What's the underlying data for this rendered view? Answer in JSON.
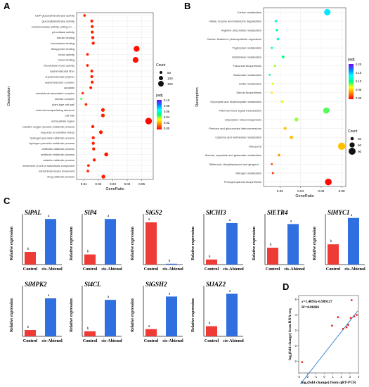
{
  "panels": {
    "A": {
      "letter": "A"
    },
    "B": {
      "letter": "B"
    },
    "C": {
      "letter": "C"
    },
    "D": {
      "letter": "D"
    }
  },
  "chart_data": [
    {
      "id": "A",
      "type": "scatter",
      "xlabel": "GeneRatio",
      "ylabel": "Description",
      "xlim": [
        0.005,
        0.058
      ],
      "xticks": [
        0.01,
        0.02,
        0.03,
        0.04,
        0.05
      ],
      "xtick_labels": [
        "0.01",
        "0.02",
        "0.03",
        "0.04",
        "0.05"
      ],
      "grid": true,
      "legend": {
        "count_title": "Count",
        "count_levels": [
          50,
          100,
          150
        ],
        "padj_title": "padj",
        "padj_levels": [
          "0.10",
          "0.08",
          "0.06",
          "0.04",
          "0.02",
          "0.00"
        ]
      },
      "points": [
        {
          "label": "UDP-glucosyltransferase activity",
          "x": 0.0105,
          "count": 40,
          "padj": 0.005
        },
        {
          "label": "glucosyltransferase activity",
          "x": 0.0155,
          "count": 55,
          "padj": 0.004
        },
        {
          "label": "oxidoreductase activity, acting on ...",
          "x": 0.0158,
          "count": 55,
          "padj": 0.004
        },
        {
          "label": "peroxidase activity",
          "x": 0.0158,
          "count": 55,
          "padj": 0.004
        },
        {
          "label": "tubulin binding",
          "x": 0.0162,
          "count": 60,
          "padj": 0.004
        },
        {
          "label": "microtubule binding",
          "x": 0.0165,
          "count": 60,
          "padj": 0.004
        },
        {
          "label": "tetrapyrrole binding",
          "x": 0.0465,
          "count": 160,
          "padj": 0.002
        },
        {
          "label": "motor activity",
          "x": 0.0125,
          "count": 45,
          "padj": 0.005
        },
        {
          "label": "heme binding",
          "x": 0.0458,
          "count": 155,
          "padj": 0.002
        },
        {
          "label": "microtubule motor activity",
          "x": 0.0125,
          "count": 45,
          "padj": 0.005
        },
        {
          "label": "supramolecular fiber",
          "x": 0.0155,
          "count": 55,
          "padj": 0.004
        },
        {
          "label": "supramolecular polymer",
          "x": 0.0155,
          "count": 55,
          "padj": 0.004
        },
        {
          "label": "supramolecular complex",
          "x": 0.0158,
          "count": 55,
          "padj": 0.004
        },
        {
          "label": "apoplast",
          "x": 0.0148,
          "count": 50,
          "padj": 0.004
        },
        {
          "label": "microtubule associated complex",
          "x": 0.0092,
          "count": 35,
          "padj": 0.005
        },
        {
          "label": "kinesin complex",
          "x": 0.0082,
          "count": 25,
          "padj": 0.045
        },
        {
          "label": "plant-type cell wall",
          "x": 0.0115,
          "count": 45,
          "padj": 0.005
        },
        {
          "label": "external encapsulating structure",
          "x": 0.0232,
          "count": 80,
          "padj": 0.004
        },
        {
          "label": "cell wall",
          "x": 0.0232,
          "count": 80,
          "padj": 0.004
        },
        {
          "label": "extracellular region",
          "x": 0.0548,
          "count": 185,
          "padj": 0.001
        },
        {
          "label": "reactive oxygen species metabolic process",
          "x": 0.0162,
          "count": 60,
          "padj": 0.004
        },
        {
          "label": "response to oxidative stress",
          "x": 0.0218,
          "count": 80,
          "padj": 0.003
        },
        {
          "label": "hydrogen peroxide catabolic process",
          "x": 0.0165,
          "count": 60,
          "padj": 0.004
        },
        {
          "label": "hydrogen peroxide metabolic process",
          "x": 0.0165,
          "count": 60,
          "padj": 0.004
        },
        {
          "label": "antibiotic catabolic process",
          "x": 0.0168,
          "count": 60,
          "padj": 0.004
        },
        {
          "label": "antibiotic metabolic process",
          "x": 0.0255,
          "count": 90,
          "padj": 0.003
        },
        {
          "label": "cofactor catabolic process",
          "x": 0.0172,
          "count": 60,
          "padj": 0.004
        },
        {
          "label": "movement of cell or subcellular component",
          "x": 0.0132,
          "count": 45,
          "padj": 0.005
        },
        {
          "label": "microtubule-based movement",
          "x": 0.0128,
          "count": 45,
          "padj": 0.005
        },
        {
          "label": "drug catabolic process",
          "x": 0.0235,
          "count": 85,
          "padj": 0.004
        }
      ]
    },
    {
      "id": "B",
      "type": "scatter",
      "xlabel": "GeneRatio",
      "ylabel": "Description",
      "xlim": [
        0.004,
        0.084
      ],
      "xticks": [
        0.02,
        0.04,
        0.06,
        0.08
      ],
      "xtick_labels": [
        "0.02",
        "0.04",
        "0.06",
        "0.08"
      ],
      "grid": true,
      "legend": {
        "padj_title": "padj",
        "padj_levels": [
          "0.20",
          "0.15",
          "0.10",
          "0.05",
          "0.00"
        ],
        "count_title": "Count",
        "count_levels": [
          30,
          60,
          90
        ]
      },
      "points": [
        {
          "label": "Carbon metabolism",
          "x": 0.066,
          "count": 80,
          "padj": 0.14
        },
        {
          "label": "Valine, leucine and isoleucine degradation",
          "x": 0.016,
          "count": 18,
          "padj": 0.12
        },
        {
          "label": "Arginine and proline metabolism",
          "x": 0.017,
          "count": 18,
          "padj": 0.11
        },
        {
          "label": "Carbon fixation in photosynthetic organisms",
          "x": 0.018,
          "count": 20,
          "padj": 0.12
        },
        {
          "label": "Tryptophan metabolism",
          "x": 0.012,
          "count": 12,
          "padj": 0.12
        },
        {
          "label": "Glutathione metabolism",
          "x": 0.023,
          "count": 22,
          "padj": 0.1
        },
        {
          "label": "Flavonoid biosynthesis",
          "x": 0.015,
          "count": 14,
          "padj": 0.08
        },
        {
          "label": "Butanoate metabolism",
          "x": 0.01,
          "count": 8,
          "padj": 0.1
        },
        {
          "label": "Sulfur metabolism",
          "x": 0.013,
          "count": 10,
          "padj": 0.07
        },
        {
          "label": "Steroid biosynthesis",
          "x": 0.012,
          "count": 10,
          "padj": 0.06
        },
        {
          "label": "Glyoxylate and dicarboxylate metabolism",
          "x": 0.022,
          "count": 20,
          "padj": 0.07
        },
        {
          "label": "Plant hormone signal transduction",
          "x": 0.065,
          "count": 75,
          "padj": 0.09
        },
        {
          "label": "Glycolysis / Gluconeogenesis",
          "x": 0.036,
          "count": 40,
          "padj": 0.08
        },
        {
          "label": "Pentose and glucuronate interconversions",
          "x": 0.025,
          "count": 25,
          "padj": 0.05
        },
        {
          "label": "Cysteine and methionine metabolism",
          "x": 0.031,
          "count": 32,
          "padj": 0.05
        },
        {
          "label": "Ribosome",
          "x": 0.08,
          "count": 95,
          "padj": 0.05
        },
        {
          "label": "Alanine, aspartate and glutamate metabolism",
          "x": 0.019,
          "count": 18,
          "padj": 0.04
        },
        {
          "label": "Stilbenoid, diarylheptanoid and gingerol ...",
          "x": 0.012,
          "count": 10,
          "padj": 0.02
        },
        {
          "label": "Nitrogen metabolism",
          "x": 0.013,
          "count": 10,
          "padj": 0.01
        },
        {
          "label": "Phenylpropanoid biosynthesis",
          "x": 0.067,
          "count": 85,
          "padj": 0.002
        }
      ]
    },
    {
      "id": "C",
      "type": "bar",
      "categories": [
        "Control",
        "cis-Abienol"
      ],
      "ylabel": "Relative expression",
      "series": [
        {
          "name": "SlPAL",
          "values": [
            1.0,
            3.6
          ],
          "letters": [
            "b",
            "a"
          ],
          "ylim": [
            0,
            4
          ]
        },
        {
          "name": "SlP4",
          "values": [
            1.0,
            4.5
          ],
          "letters": [
            "b",
            "a"
          ],
          "ylim": [
            0,
            5
          ]
        },
        {
          "name": "SlGS2",
          "values": [
            1.0,
            0.02
          ],
          "letters": [
            "a",
            "b"
          ],
          "ylim": [
            0,
            1.2
          ]
        },
        {
          "name": "SlCHI3",
          "values": [
            1.0,
            8.2
          ],
          "letters": [
            "b",
            "a"
          ],
          "ylim": [
            0,
            10
          ]
        },
        {
          "name": "SlETR4",
          "values": [
            1.0,
            2.4
          ],
          "letters": [
            "b",
            "a"
          ],
          "ylim": [
            0,
            3
          ]
        },
        {
          "name": "SlMYC1",
          "values": [
            1.0,
            2.3
          ],
          "letters": [
            "b",
            "a"
          ],
          "ylim": [
            0,
            2.5
          ]
        },
        {
          "name": "SlMPK2",
          "values": [
            1.0,
            6.0
          ],
          "letters": [
            "b",
            "a"
          ],
          "ylim": [
            0,
            8
          ]
        },
        {
          "name": "Sl4CL",
          "values": [
            1.0,
            7.2
          ],
          "letters": [
            "b",
            "a"
          ],
          "ylim": [
            0,
            10
          ]
        },
        {
          "name": "SlGSH2",
          "values": [
            1.0,
            5.5
          ],
          "letters": [
            "a",
            "a"
          ],
          "ylim": [
            0,
            7
          ]
        },
        {
          "name": "SlJAZ2",
          "values": [
            1.0,
            4.2
          ],
          "letters": [
            "b",
            "a"
          ],
          "ylim": [
            0,
            5
          ]
        }
      ]
    },
    {
      "id": "D",
      "type": "scatter",
      "xlabel": "log₂(fold change) from qRT-PCR",
      "ylabel": "log₂(fold change) from RNA-seq",
      "xlim": [
        -3,
        4
      ],
      "ylim": [
        -3.5,
        6.5
      ],
      "xticks": [
        -3,
        -2,
        -1,
        0,
        1,
        2,
        3,
        4
      ],
      "yticks": [
        -2,
        0,
        2,
        4,
        6
      ],
      "equation": "y=1.4093x-0.989127",
      "r2_text": "R²=0.86686",
      "fit": {
        "slope": 1.4093,
        "intercept": -0.989127
      },
      "points": [
        {
          "x": -2.6,
          "y": -2.1
        },
        {
          "x": 0.9,
          "y": 2.6
        },
        {
          "x": 1.6,
          "y": 3.7
        },
        {
          "x": 2.2,
          "y": 2.2
        },
        {
          "x": 2.6,
          "y": 2.4
        },
        {
          "x": 2.8,
          "y": 2.7
        },
        {
          "x": 3.1,
          "y": 3.6
        },
        {
          "x": 3.2,
          "y": 5.9
        },
        {
          "x": 3.5,
          "y": 3.8
        },
        {
          "x": 3.8,
          "y": 4.0
        }
      ]
    }
  ]
}
